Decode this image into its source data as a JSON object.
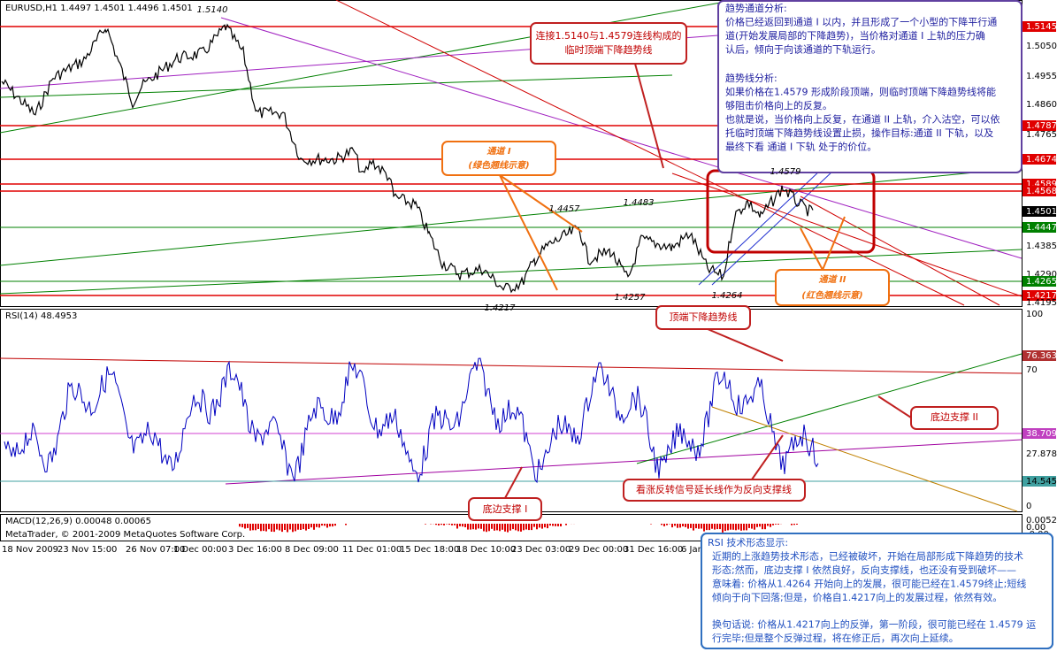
{
  "header": "EURUSD,H1  1.4497 1.4501 1.4496 1.4501",
  "price_axis": [
    {
      "label": "1.5145",
      "color": "#e00000"
    },
    {
      "label": "1.5050",
      "color": null
    },
    {
      "label": "1.4955",
      "color": null
    },
    {
      "label": "1.4860",
      "color": null
    },
    {
      "label": "1.4787",
      "color": "#e00000"
    },
    {
      "label": "1.4765",
      "color": null
    },
    {
      "label": "1.4674",
      "color": "#e00000"
    },
    {
      "label": "1.4589",
      "color": "#e00000"
    },
    {
      "label": "1.4568",
      "color": "#e00000"
    },
    {
      "label": "1.4501",
      "color": "#000000"
    },
    {
      "label": "1.4447",
      "color": "#008000"
    },
    {
      "label": "1.4385",
      "color": null
    },
    {
      "label": "1.4290",
      "color": null
    },
    {
      "label": "1.4265",
      "color": "#008000"
    },
    {
      "label": "1.4217",
      "color": "#e00000"
    },
    {
      "label": "1.4195",
      "color": null
    }
  ],
  "price_marks": [
    "1.5140",
    "1.4457",
    "1.4483",
    "1.4579",
    "1.4257",
    "1.4264",
    "1.4217"
  ],
  "rsi": {
    "header": "RSI(14) 48.4953",
    "axis": [
      {
        "label": "100",
        "color": null
      },
      {
        "label": "76.3636",
        "color": "#ffffff"
      },
      {
        "label": "70",
        "color": null
      },
      {
        "label": "38.7097",
        "color": "#ffffff"
      },
      {
        "label": "27.8788",
        "color": null
      },
      {
        "label": "14.5455",
        "color": null
      },
      {
        "label": "0",
        "color": null
      }
    ]
  },
  "macd": {
    "header": "MACD(12,26,9) 0.00048 0.00065",
    "axis": [
      "0.00524",
      "0.00",
      "-0.00"
    ]
  },
  "copyright": "MetaTrader, © 2001-2009 MetaQuotes Software Corp.",
  "dates": [
    "18 Nov 2009",
    "23 Nov 15:00",
    "26 Nov 07:00",
    "1 Dec 00:00",
    "3 Dec 16:00",
    "8 Dec 09:00",
    "11 Dec 01:00",
    "15 Dec 18:00",
    "18 Dec 10:00",
    "23 Dec 03:00",
    "29 Dec 00:00",
    "31 Dec 16:00",
    "6 Jan 13"
  ],
  "annotations": {
    "trend_analysis": [
      "趋势通道分析:",
      "价格已经返回到通道 I 以内，并且形成了一个小型的下降平行通",
      "道(开始发展局部的下降趋势)，当价格对通道 I 上轨的压力确",
      "认后，倾向于向该通道的下轨运行。",
      "趋势线分析:",
      "如果价格在1.4579 形成阶段顶端，则临时顶端下降趋势线将能",
      "够阻击价格向上的反复。",
      "也就是说，当价格向上反复，在通道 II 上轨，介入沽空，可以依",
      "托临时顶端下降趋势线设置止损，操作目标:通道 II 下轨，以及",
      "最终下看 通道 I 下轨 处于的价位。"
    ],
    "temp_trendline": [
      "连接1.5140与1.4579连线构成的",
      "临时顶端下降趋势线"
    ],
    "channel_1": [
      "通道 I",
      "(绿色翘线示意)"
    ],
    "channel_2": [
      "通道 II",
      "(红色翘线示意)"
    ],
    "top_trendline": "顶端下降趋势线",
    "support_2": "底边支撑 II",
    "reverse_support": "看涨反转信号延长线作为反向支撑线",
    "support_1": "底边支撑 I",
    "rsi_analysis": [
      "RSI 技术形态显示:",
      "近期的上涨趋势技术形态，已经被破坏，开始在局部形成下降趋势的技术",
      "形态;然而，底边支撑 I 依然良好，反向支撑线，也还没有受到破坏——",
      "意味着: 价格从1.4264 开始向上的发展，很可能已经在1.4579终止;短线",
      "倾向于向下回落;但是，价格自1.4217向上的发展过程，依然有效。",
      "换句话说: 价格从1.4217向上的反弹，第一阶段，很可能已经在 1.4579 运",
      "行完毕;但是整个反弹过程，将在修正后，再次向上延续。"
    ]
  }
}
